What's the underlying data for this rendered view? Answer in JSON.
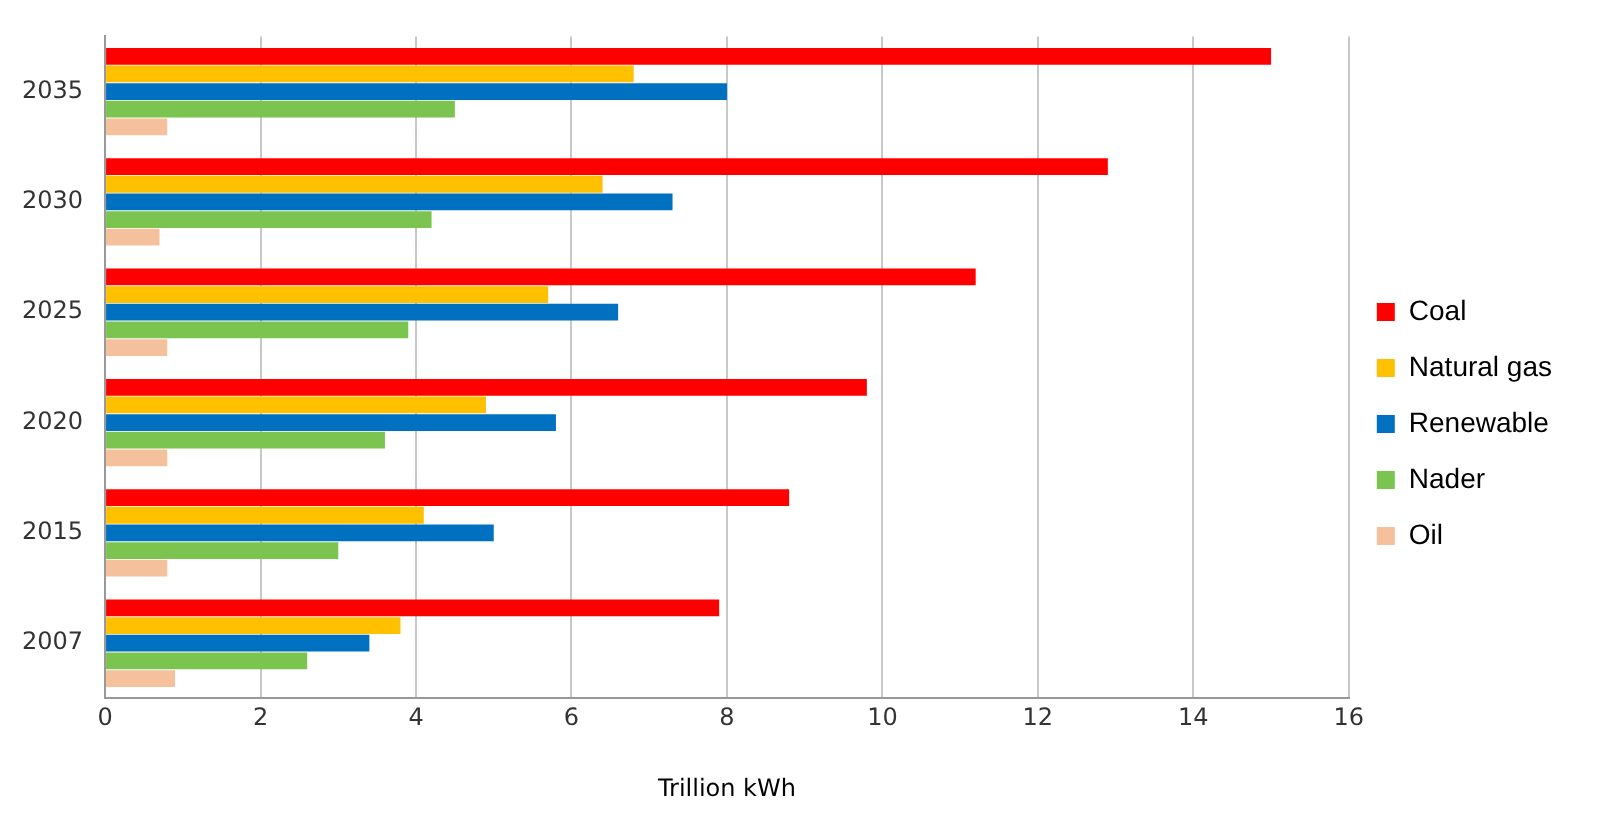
{
  "chart_data": {
    "type": "bar",
    "orientation": "horizontal",
    "xlabel": "Trillion kWh",
    "categories": [
      "2035",
      "2030",
      "2025",
      "2020",
      "2015",
      "2007"
    ],
    "series": [
      {
        "name": "Coal",
        "color": "#ff0000",
        "values": [
          15.0,
          12.9,
          11.2,
          9.8,
          8.8,
          7.9
        ]
      },
      {
        "name": "Natural gas",
        "color": "#ffc000",
        "values": [
          6.8,
          6.4,
          5.7,
          4.9,
          4.1,
          3.8
        ]
      },
      {
        "name": "Renewable",
        "color": "#0070c0",
        "values": [
          8.0,
          7.3,
          6.6,
          5.8,
          5.0,
          3.4
        ]
      },
      {
        "name": "Nader",
        "color": "#7ac44f",
        "values": [
          4.5,
          4.2,
          3.9,
          3.6,
          3.0,
          2.6
        ]
      },
      {
        "name": "Oil",
        "color": "#f5c19c",
        "values": [
          0.8,
          0.7,
          0.8,
          0.8,
          0.8,
          0.9
        ]
      }
    ],
    "xlim": [
      0,
      16
    ],
    "xticks": [
      0,
      2,
      4,
      6,
      8,
      10,
      12,
      14,
      16
    ],
    "grid": "x",
    "legend": "right"
  }
}
